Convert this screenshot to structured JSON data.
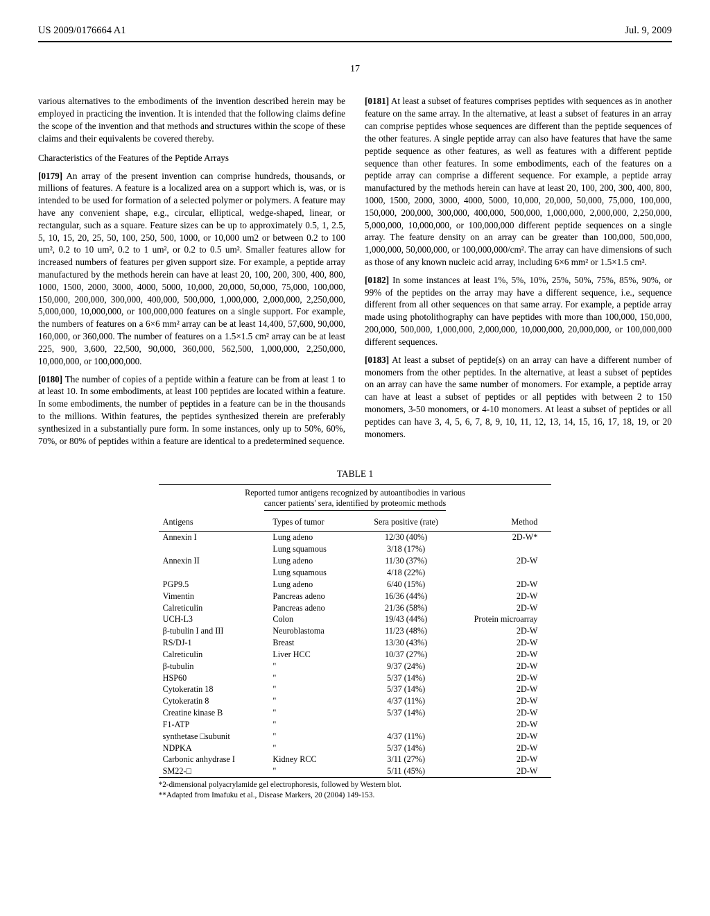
{
  "header": {
    "app_number": "US 2009/0176664 A1",
    "date": "Jul. 9, 2009"
  },
  "page_number": "17",
  "left_column": {
    "intro_para": "various alternatives to the embodiments of the invention described herein may be employed in practicing the invention. It is intended that the following claims define the scope of the invention and that methods and structures within the scope of these claims and their equivalents be covered thereby.",
    "section_heading": "Characteristics of the Features of the Peptide Arrays",
    "p0179_num": "[0179]",
    "p0179": " An array of the present invention can comprise hundreds, thousands, or millions of features. A feature is a localized area on a support which is, was, or is intended to be used for formation of a selected polymer or polymers. A feature may have any convenient shape, e.g., circular, elliptical, wedge-shaped, linear, or rectangular, such as a square. Feature sizes can be up to approximately 0.5, 1, 2.5, 5, 10, 15, 20, 25, 50, 100, 250, 500, 1000, or 10,000 um2 or between 0.2 to 100 um², 0.2 to 10 um², 0.2 to 1 um², or 0.2 to 0.5 um². Smaller features allow for increased numbers of features per given support size. For example, a peptide array manufactured by the methods herein can have at least 20, 100, 200, 300, 400, 800, 1000, 1500, 2000, 3000, 4000, 5000, 10,000, 20,000, 50,000, 75,000, 100,000, 150,000, 200,000, 300,000, 400,000, 500,000, 1,000,000, 2,000,000, 2,250,000, 5,000,000, 10,000,000, or 100,000,000 features on a single support. For example, the numbers of features on a 6×6 mm² array can be at least 14,400, 57,600, 90,000, 160,000, or 360,000. The number of features on a 1.5×1.5 cm² array can be at least 225, 900, 3,600, 22,500, 90,000, 360,000, 562,500, 1,000,000, 2,250,000, 10,000,000, or 100,000,000.",
    "p0180_num": "[0180]",
    "p0180": " The number of copies of a peptide within a feature can be from at least 1 to at least 10. In some embodiments, at least 100 peptides are located within a feature. In some embodiments, the number of peptides in a feature can be in the thousands to the millions. Within features, the peptides synthesized therein are preferably synthesized in a substantially pure form. In some instances, only up to 50%, 60%, 70%, or 80% of peptides within a feature are identical to a predetermined sequence."
  },
  "right_column": {
    "p0181_num": "[0181]",
    "p0181": " At least a subset of features comprises peptides with sequences as in another feature on the same array. In the alternative, at least a subset of features in an array can comprise peptides whose sequences are different than the peptide sequences of the other features. A single peptide array can also have features that have the same peptide sequence as other features, as well as features with a different peptide sequence than other features. In some embodiments, each of the features on a peptide array can comprise a different sequence. For example, a peptide array manufactured by the methods herein can have at least 20, 100, 200, 300, 400, 800, 1000, 1500, 2000, 3000, 4000, 5000, 10,000, 20,000, 50,000, 75,000, 100,000, 150,000, 200,000, 300,000, 400,000, 500,000, 1,000,000, 2,000,000, 2,250,000, 5,000,000, 10,000,000, or 100,000,000 different peptide sequences on a single array. The feature density on an array can be greater than 100,000, 500,000, 1,000,000, 50,000,000, or 100,000,000/cm². The array can have dimensions of such as those of any known nucleic acid array, including 6×6 mm² or 1.5×1.5 cm².",
    "p0182_num": "[0182]",
    "p0182": " In some instances at least 1%, 5%, 10%, 25%, 50%, 75%, 85%, 90%, or 99% of the peptides on the array may have a different sequence, i.e., sequence different from all other sequences on that same array. For example, a peptide array made using photolithography can have peptides with more than 100,000, 150,000, 200,000, 500,000, 1,000,000, 2,000,000, 10,000,000, 20,000,000, or 100,000,000 different sequences.",
    "p0183_num": "[0183]",
    "p0183": " At least a subset of peptide(s) on an array can have a different number of monomers from the other peptides. In the alternative, at least a subset of peptides on an array can have the same number of monomers. For example, a peptide array can have at least a subset of peptides or all peptides with between 2 to 150 monomers, 3-50 monomers, or 4-10 monomers. At least a subset of peptides or all peptides can have 3, 4, 5, 6, 7, 8, 9, 10, 11, 12, 13, 14, 15, 16, 17, 18, 19, or 20 monomers."
  },
  "table": {
    "label": "TABLE 1",
    "caption_line1": "Reported tumor antigens recognized by autoantibodies in various",
    "caption_line2": "cancer patients' sera, identified by proteomic methods",
    "headers": [
      "Antigens",
      "Types of tumor",
      "Sera positive (rate)",
      "Method"
    ],
    "rows": [
      [
        "Annexin I",
        "Lung adeno",
        "12/30 (40%)",
        "2D-W*"
      ],
      [
        "",
        "Lung squamous",
        "3/18 (17%)",
        ""
      ],
      [
        "Annexin II",
        "Lung adeno",
        "11/30 (37%)",
        "2D-W"
      ],
      [
        "",
        "Lung squamous",
        "4/18 (22%)",
        ""
      ],
      [
        "PGP9.5",
        "Lung adeno",
        "6/40 (15%)",
        "2D-W"
      ],
      [
        "Vimentin",
        "Pancreas adeno",
        "16/36 (44%)",
        "2D-W"
      ],
      [
        "Calreticulin",
        "Pancreas adeno",
        "21/36 (58%)",
        "2D-W"
      ],
      [
        "UCH-L3",
        "Colon",
        "19/43 (44%)",
        "Protein microarray"
      ],
      [
        "β-tubulin I and III",
        "Neuroblastoma",
        "11/23 (48%)",
        "2D-W"
      ],
      [
        "RS/DJ-1",
        "Breast",
        "13/30 (43%)",
        "2D-W"
      ],
      [
        "Calreticulin",
        "Liver HCC",
        "10/37 (27%)",
        "2D-W"
      ],
      [
        "β-tubulin",
        "\"",
        "9/37 (24%)",
        "2D-W"
      ],
      [
        "HSP60",
        "\"",
        "5/37 (14%)",
        "2D-W"
      ],
      [
        "Cytokeratin 18",
        "\"",
        "5/37 (14%)",
        "2D-W"
      ],
      [
        "Cytokeratin 8",
        "\"",
        "4/37 (11%)",
        "2D-W"
      ],
      [
        "Creatine kinase B",
        "\"",
        "5/37 (14%)",
        "2D-W"
      ],
      [
        "F1-ATP",
        "\"",
        "",
        "2D-W"
      ],
      [
        "synthetase □subunit",
        "\"",
        "4/37 (11%)",
        "2D-W"
      ],
      [
        "NDPKA",
        "\"",
        "5/37 (14%)",
        "2D-W"
      ],
      [
        "Carbonic anhydrase I",
        "Kidney RCC",
        "3/11 (27%)",
        "2D-W"
      ],
      [
        "SM22-□",
        "\"",
        "5/11 (45%)",
        "2D-W"
      ]
    ],
    "footnote1": "*2-dimensional polyacrylamide gel electrophoresis, followed by Western blot.",
    "footnote2": "**Adapted from Imafuku et al., Disease Markers, 20 (2004) 149-153."
  }
}
